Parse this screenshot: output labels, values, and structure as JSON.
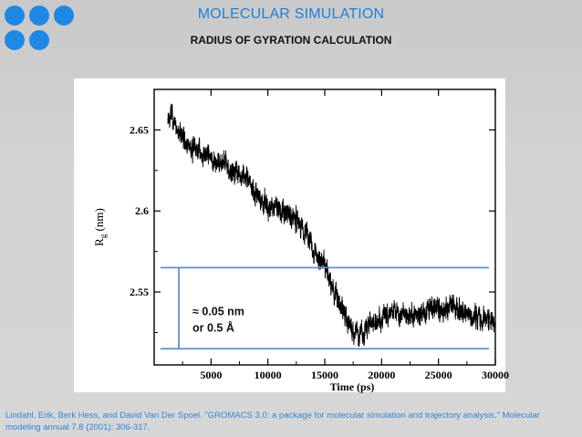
{
  "colors": {
    "accent": "#1f88e5",
    "title": "#1f7fd6",
    "citation": "#2f86d6",
    "annotation_line": "#5b8fd0",
    "annotation_text": "#111111",
    "trace": "#000000"
  },
  "header": {
    "title": "MOLECULAR SIMULATION",
    "subtitle": "RADIUS OF GYRATION CALCULATION"
  },
  "decoration": {
    "dots": [
      "accent-dot",
      "accent-dot",
      "accent-dot",
      "accent-dot",
      "accent-dot"
    ]
  },
  "chart_data": {
    "type": "line",
    "title": "",
    "xlabel": "Time (ps)",
    "ylabel_main": "R",
    "ylabel_sub": "g",
    "ylabel_unit": " (nm)",
    "xlim": [
      0,
      30000
    ],
    "ylim": [
      2.505,
      2.675
    ],
    "xticks": [
      5000,
      10000,
      15000,
      20000,
      25000,
      30000
    ],
    "xtick_labels": [
      "5000",
      "10000",
      "15000",
      "20000",
      "25000",
      "30000"
    ],
    "yticks": [
      2.55,
      2.6,
      2.65
    ],
    "ytick_labels": [
      "2.55",
      "2.6",
      "2.65"
    ],
    "grid": false,
    "series": [
      {
        "name": "Rg",
        "x": [
          0,
          1000,
          2000,
          3000,
          4000,
          5000,
          6000,
          7000,
          8000,
          9000,
          10000,
          11000,
          12000,
          13000,
          14000,
          15000,
          16000,
          17000,
          18000,
          19000,
          20000,
          21000,
          22000,
          23000,
          24000,
          25000,
          26000,
          27000,
          28000,
          29000,
          30000
        ],
        "values": [
          2.655,
          2.664,
          2.65,
          2.64,
          2.636,
          2.632,
          2.629,
          2.626,
          2.622,
          2.61,
          2.603,
          2.6,
          2.598,
          2.59,
          2.578,
          2.565,
          2.548,
          2.532,
          2.523,
          2.53,
          2.535,
          2.538,
          2.536,
          2.533,
          2.538,
          2.54,
          2.542,
          2.538,
          2.535,
          2.533,
          2.533
        ],
        "noise_amplitude": 0.007
      }
    ],
    "annotation": {
      "y_upper": 2.565,
      "y_lower": 2.515,
      "label_line1": "≈ 0.05 nm",
      "label_line2": "or 0.5 Å"
    }
  },
  "citation": {
    "text": "Lindahl, Erik, Berk Hess, and David Van Der Spoel. \"GROMACS 3.0: a package for molecular simulation and trajectory analysis.\" Molecular modeling annual 7.8 (2001): 306-317."
  }
}
